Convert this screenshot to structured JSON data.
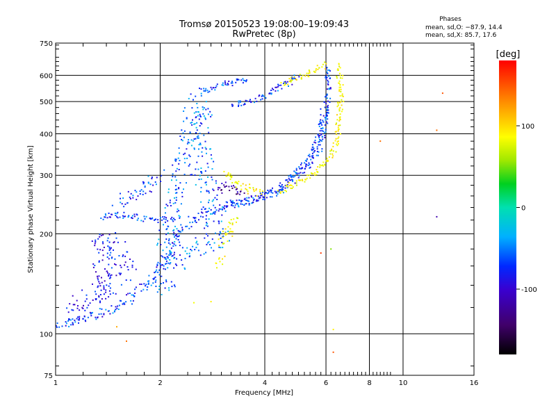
{
  "chart_data": {
    "type": "scatter",
    "title": "Tromsø 20150523 19:08:00–19:09:43",
    "subtitle": "RwPretec (8p)",
    "xlabel": "Frequency [MHz]",
    "ylabel": "Stationary phase Virtual Height [km]",
    "x_scale": "log2",
    "y_scale": "log",
    "xlim": [
      1,
      16
    ],
    "ylim": [
      75,
      750
    ],
    "x_ticks": [
      1,
      2,
      4,
      6,
      8,
      10,
      16
    ],
    "y_ticks": [
      75,
      100,
      200,
      300,
      400,
      500,
      600,
      750
    ],
    "grid": true,
    "colorbar": {
      "label": "[deg]",
      "range": [
        -180,
        180
      ],
      "ticks": [
        100,
        0,
        -100
      ]
    },
    "phase_legend": {
      "title": "Phases",
      "line_o": "mean, sd,O: −87.9, 14.4",
      "line_x": "mean, sd,X:  85.7, 17.6"
    },
    "traces": [
      {
        "phase": -100,
        "spread": 0.022,
        "points": [
          [
            1.02,
            106
          ],
          [
            1.2,
            111
          ],
          [
            1.4,
            117
          ],
          [
            1.6,
            125
          ],
          [
            1.75,
            135
          ],
          [
            1.9,
            148
          ],
          [
            2.0,
            160
          ],
          [
            2.1,
            172
          ],
          [
            2.2,
            190
          ],
          [
            2.3,
            205
          ],
          [
            2.5,
            222
          ],
          [
            2.8,
            235
          ],
          [
            3.2,
            245
          ],
          [
            3.8,
            255
          ],
          [
            4.3,
            265
          ],
          [
            4.8,
            290
          ],
          [
            5.2,
            315
          ],
          [
            5.6,
            350
          ],
          [
            5.8,
            385
          ],
          [
            5.9,
            430
          ],
          [
            5.95,
            470
          ]
        ]
      },
      {
        "phase": -100,
        "spread": 0.014,
        "points": [
          [
            1.35,
            224
          ],
          [
            1.45,
            228
          ],
          [
            1.55,
            228
          ],
          [
            1.7,
            225
          ],
          [
            1.8,
            222
          ],
          [
            2.0,
            220
          ],
          [
            2.2,
            222
          ]
        ]
      },
      {
        "phase": -100,
        "spread": 0.03,
        "points": [
          [
            1.5,
            250
          ],
          [
            1.7,
            262
          ],
          [
            1.85,
            280
          ],
          [
            2.0,
            300
          ]
        ]
      },
      {
        "phase": -100,
        "spread": 0.016,
        "points": [
          [
            3.1,
            245
          ],
          [
            3.6,
            252
          ],
          [
            4.1,
            262
          ],
          [
            4.5,
            280
          ],
          [
            4.9,
            300
          ],
          [
            5.3,
            330
          ],
          [
            5.6,
            370
          ],
          [
            5.85,
            420
          ],
          [
            6.0,
            480
          ],
          [
            6.1,
            540
          ],
          [
            6.1,
            600
          ],
          [
            6.0,
            640
          ]
        ]
      },
      {
        "phase": -100,
        "spread": 0.014,
        "points": [
          [
            3.2,
            490
          ],
          [
            3.6,
            500
          ],
          [
            4.0,
            520
          ],
          [
            4.4,
            550
          ],
          [
            4.8,
            580
          ],
          [
            5.0,
            600
          ]
        ]
      },
      {
        "phase": -100,
        "spread": 0.014,
        "points": [
          [
            2.6,
            535
          ],
          [
            2.9,
            555
          ],
          [
            3.2,
            570
          ],
          [
            3.6,
            580
          ]
        ]
      },
      {
        "phase": -92,
        "spread": 0.05,
        "points": [
          [
            2.05,
            130
          ],
          [
            2.1,
            200
          ],
          [
            2.2,
            250
          ],
          [
            2.3,
            300
          ],
          [
            2.35,
            350
          ],
          [
            2.4,
            400
          ],
          [
            2.5,
            450
          ],
          [
            2.6,
            500
          ],
          [
            2.7,
            300
          ],
          [
            2.8,
            250
          ],
          [
            2.9,
            200
          ],
          [
            3.0,
            190
          ],
          [
            2.5,
            180
          ],
          [
            2.2,
            160
          ]
        ]
      },
      {
        "phase": -110,
        "spread": 0.05,
        "points": [
          [
            1.05,
            112
          ],
          [
            1.15,
            120
          ],
          [
            1.3,
            132
          ],
          [
            1.45,
            145
          ],
          [
            1.6,
            160
          ],
          [
            1.5,
            180
          ],
          [
            1.35,
            195
          ],
          [
            1.4,
            130
          ]
        ]
      },
      {
        "phase": -135,
        "spread": 0.02,
        "points": [
          [
            2.9,
            270
          ],
          [
            3.1,
            280
          ],
          [
            3.3,
            270
          ],
          [
            3.5,
            270
          ]
        ]
      },
      {
        "phase": 90,
        "spread": 0.018,
        "points": [
          [
            3.1,
            310
          ],
          [
            3.2,
            295
          ],
          [
            3.4,
            280
          ],
          [
            3.6,
            272
          ],
          [
            3.8,
            268
          ],
          [
            3.95,
            265
          ]
        ]
      },
      {
        "phase": 88,
        "spread": 0.015,
        "points": [
          [
            4.4,
            270
          ],
          [
            4.8,
            280
          ],
          [
            5.2,
            290
          ],
          [
            5.6,
            305
          ],
          [
            6.1,
            330
          ],
          [
            6.4,
            370
          ],
          [
            6.5,
            400
          ],
          [
            6.55,
            450
          ],
          [
            6.6,
            500
          ],
          [
            6.6,
            560
          ],
          [
            6.55,
            620
          ],
          [
            6.5,
            650
          ]
        ]
      },
      {
        "phase": 90,
        "spread": 0.015,
        "points": [
          [
            4.5,
            565
          ],
          [
            4.9,
            585
          ],
          [
            5.3,
            605
          ],
          [
            5.7,
            630
          ],
          [
            6.0,
            650
          ]
        ]
      },
      {
        "phase": 85,
        "spread": 0.02,
        "points": [
          [
            3.0,
            185
          ],
          [
            3.1,
            195
          ],
          [
            3.2,
            210
          ],
          [
            3.3,
            225
          ]
        ]
      },
      {
        "phase": 90,
        "spread": 0.02,
        "points": [
          [
            2.9,
            160
          ],
          [
            3.0,
            170
          ]
        ]
      }
    ],
    "isolated_points": [
      {
        "f": 6.3,
        "h": 88,
        "phase": 150
      },
      {
        "f": 6.3,
        "h": 103,
        "phase": 95
      },
      {
        "f": 6.2,
        "h": 180,
        "phase": 40
      },
      {
        "f": 5.8,
        "h": 175,
        "phase": 160
      },
      {
        "f": 8.6,
        "h": 380,
        "phase": 140
      },
      {
        "f": 12.5,
        "h": 410,
        "phase": 140
      },
      {
        "f": 12.5,
        "h": 225,
        "phase": -130
      },
      {
        "f": 13.0,
        "h": 530,
        "phase": 150
      },
      {
        "f": 1.6,
        "h": 95,
        "phase": 140
      },
      {
        "f": 1.5,
        "h": 105,
        "phase": 120
      },
      {
        "f": 2.5,
        "h": 124,
        "phase": 85
      },
      {
        "f": 2.8,
        "h": 125,
        "phase": 95
      }
    ]
  }
}
